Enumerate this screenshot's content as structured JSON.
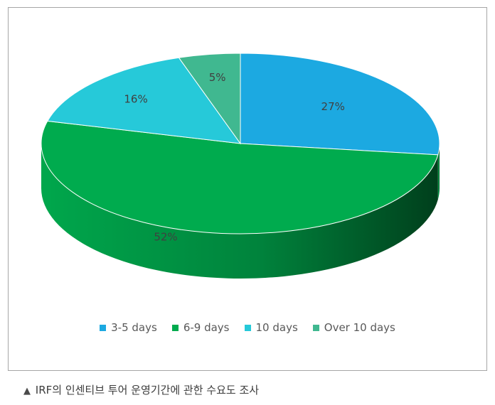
{
  "chart_data": {
    "type": "pie",
    "title": "",
    "categories": [
      "3-5 days",
      "6-9 days",
      "10 days",
      "Over 10 days"
    ],
    "values": [
      27,
      52,
      16,
      5
    ],
    "value_labels": [
      "27%",
      "52%",
      "16%",
      "5%"
    ],
    "colors": [
      "#1ca9e1",
      "#00ab4e",
      "#26c9d9",
      "#40b890"
    ],
    "side_color": "#00833c",
    "style": "3d",
    "legend_position": "bottom"
  },
  "caption": {
    "glyph": "▲",
    "text": "IRF의 인센티브 투어 운영기간에 관한 수요도 조사"
  }
}
